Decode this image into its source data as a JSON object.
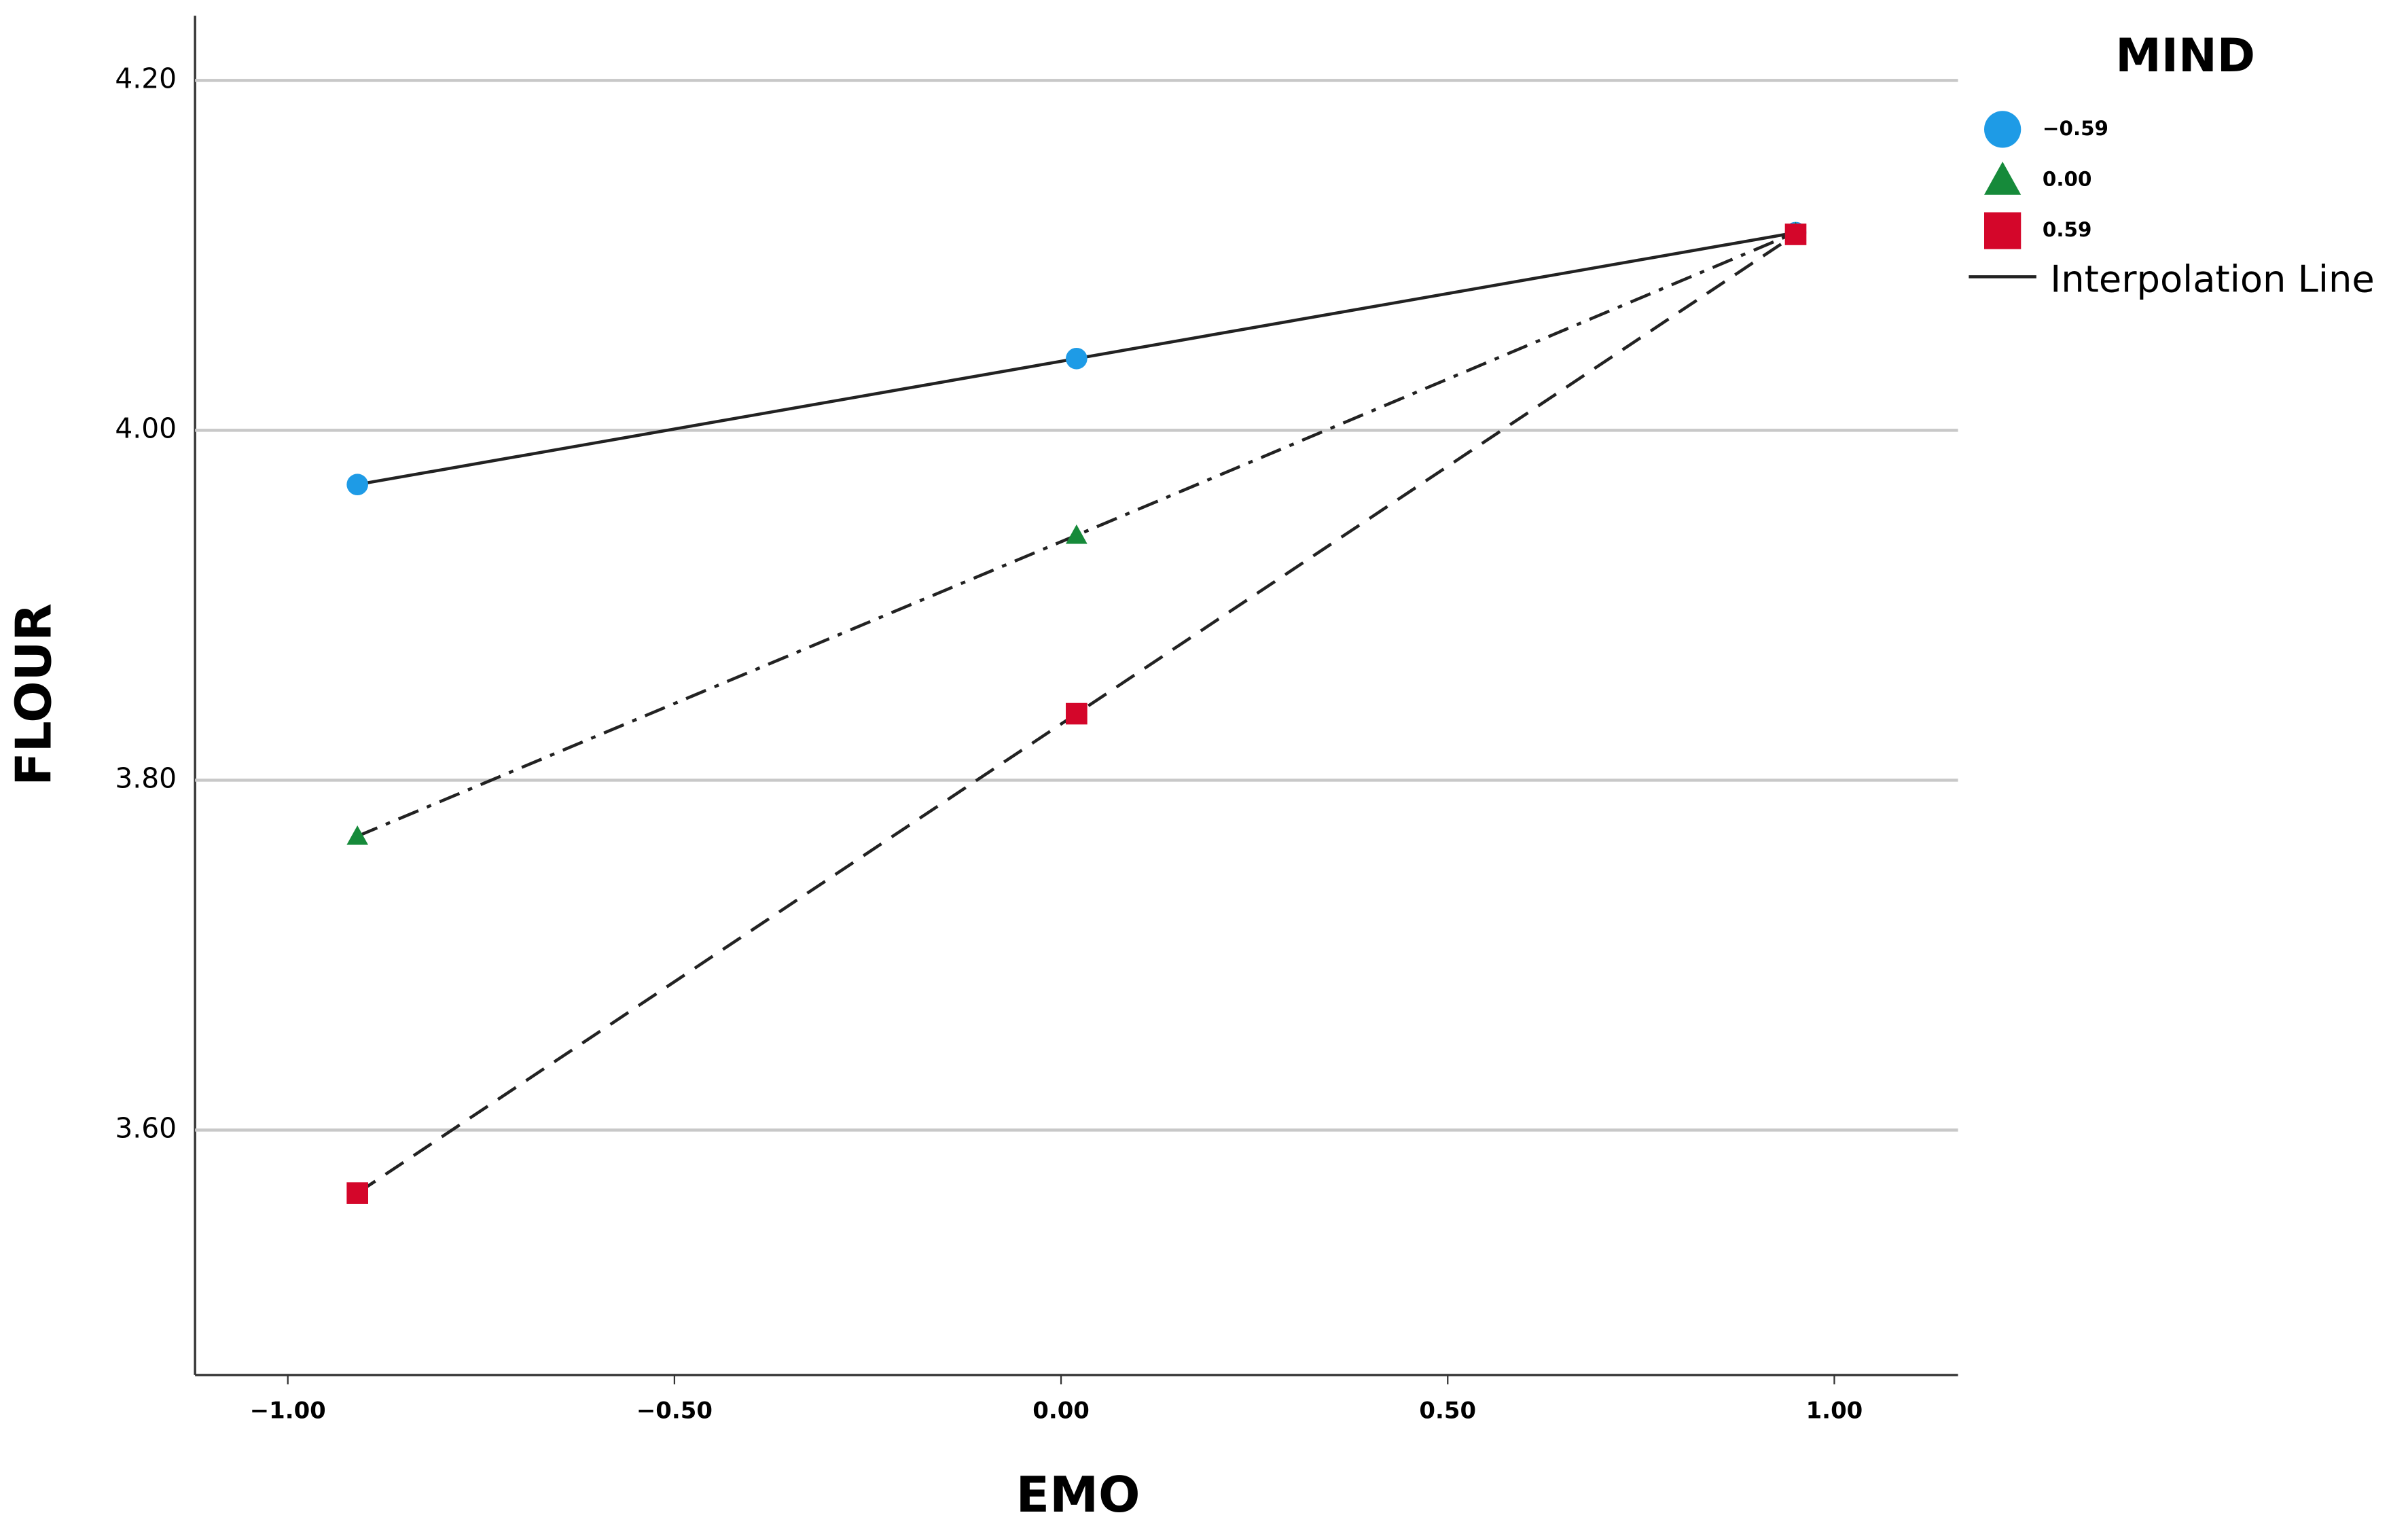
{
  "chart_data": {
    "type": "line",
    "x_label": "EMO",
    "y_label": "FLOUR",
    "legend_title": "MIND",
    "legend_line_label": "Interpolation Line",
    "x": [
      -0.91,
      0.02,
      0.95
    ],
    "series": [
      {
        "name": "−0.59",
        "color": "#1e9be6",
        "marker": "circle",
        "dash": "solid",
        "values": [
          3.969,
          4.041,
          4.113
        ]
      },
      {
        "name": "0.00",
        "color": "#168a3a",
        "marker": "triangle",
        "dash": "dashdot",
        "values": [
          3.768,
          3.94,
          4.113
        ]
      },
      {
        "name": "0.59",
        "color": "#d4062a",
        "marker": "square",
        "dash": "dashed",
        "values": [
          3.564,
          3.838,
          4.112
        ]
      }
    ],
    "line_color": "#222222",
    "xlim": [
      -1.12,
      1.16
    ],
    "ylim": [
      3.46,
      4.237
    ],
    "xticks": [
      {
        "value": -1,
        "label": "−1.00"
      },
      {
        "value": -0.5,
        "label": "−0.50"
      },
      {
        "value": 0,
        "label": "0.00"
      },
      {
        "value": 0.5,
        "label": "0.50"
      },
      {
        "value": 1,
        "label": "1.00"
      }
    ],
    "yticks": [
      {
        "value": 3.6,
        "label": "3.60"
      },
      {
        "value": 3.8,
        "label": "3.80"
      },
      {
        "value": 4,
        "label": "4.00"
      },
      {
        "value": 4.2,
        "label": "4.20"
      }
    ],
    "grid": true,
    "legend": "right"
  }
}
